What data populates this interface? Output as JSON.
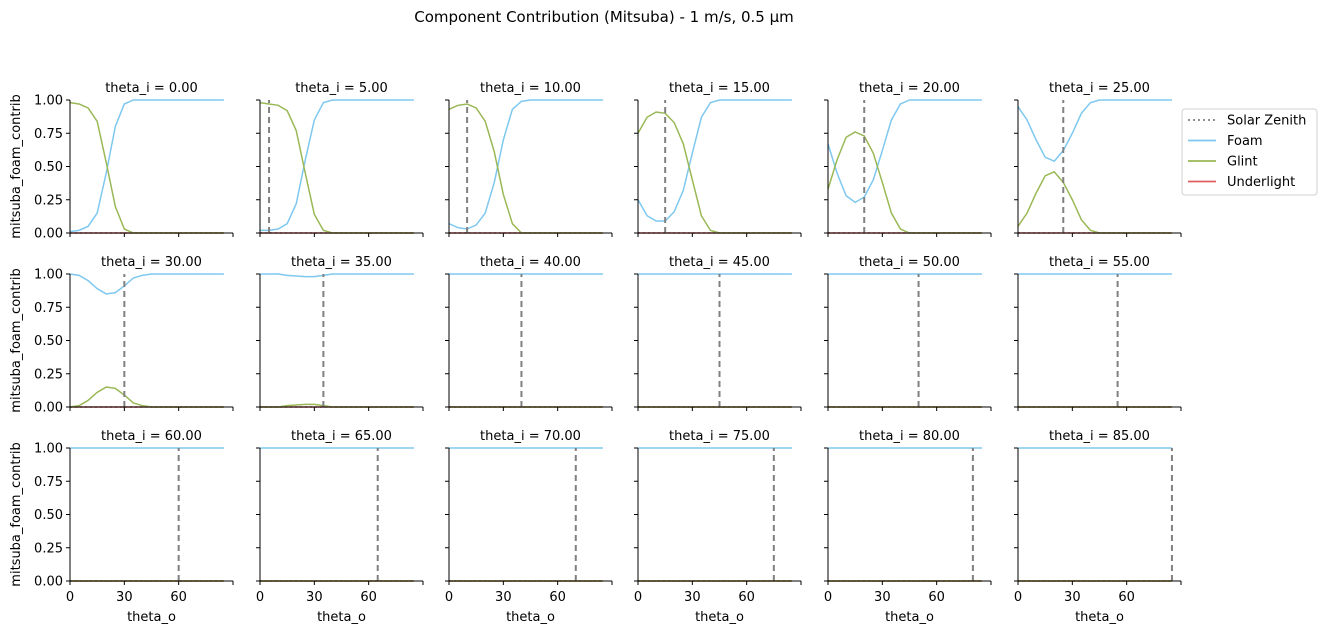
{
  "chart_data": {
    "type": "line",
    "title": "Component Contribution (Mitsuba) - 1 m/s, 0.5 µm",
    "xlabel": "theta_o",
    "ylabel": "mitsuba_foam_contrib",
    "xlim": [
      0,
      90
    ],
    "ylim": [
      0,
      1
    ],
    "x_ticks": [
      "0",
      "30",
      "60"
    ],
    "y_ticks": [
      "0.00",
      "0.25",
      "0.50",
      "0.75",
      "1.00"
    ],
    "grid": false,
    "legend_position": "right",
    "legend": [
      "Solar Zenith",
      "Foam",
      "Glint",
      "Underlight"
    ],
    "colors": {
      "Solar Zenith": "#808080",
      "Foam": "#7ec8f0",
      "Glint": "#9ab855",
      "Underlight": "#e06060"
    },
    "theta_o": [
      0,
      5,
      10,
      15,
      20,
      25,
      30,
      35,
      40,
      45,
      50,
      55,
      60,
      65,
      70,
      75,
      80,
      85
    ],
    "panels": [
      {
        "title": "theta_i = 0.00",
        "solar_zenith": 0,
        "foam": [
          0.01,
          0.02,
          0.05,
          0.15,
          0.45,
          0.8,
          0.97,
          1,
          1,
          1,
          1,
          1,
          1,
          1,
          1,
          1,
          1,
          1
        ],
        "glint": [
          0.98,
          0.97,
          0.94,
          0.84,
          0.53,
          0.2,
          0.03,
          0,
          0,
          0,
          0,
          0,
          0,
          0,
          0,
          0,
          0,
          0
        ],
        "underlight": [
          0,
          0,
          0,
          0,
          0,
          0,
          0,
          0,
          0,
          0,
          0,
          0,
          0,
          0,
          0,
          0,
          0,
          0
        ]
      },
      {
        "title": "theta_i = 5.00",
        "solar_zenith": 5,
        "foam": [
          0.02,
          0.02,
          0.03,
          0.07,
          0.22,
          0.55,
          0.85,
          0.98,
          1,
          1,
          1,
          1,
          1,
          1,
          1,
          1,
          1,
          1
        ],
        "glint": [
          0.98,
          0.97,
          0.96,
          0.92,
          0.77,
          0.45,
          0.14,
          0.02,
          0,
          0,
          0,
          0,
          0,
          0,
          0,
          0,
          0,
          0
        ],
        "underlight": [
          0,
          0,
          0,
          0,
          0,
          0,
          0,
          0,
          0,
          0,
          0,
          0,
          0,
          0,
          0,
          0,
          0,
          0
        ]
      },
      {
        "title": "theta_i = 10.00",
        "solar_zenith": 10,
        "foam": [
          0.07,
          0.04,
          0.03,
          0.06,
          0.15,
          0.38,
          0.7,
          0.93,
          0.99,
          1,
          1,
          1,
          1,
          1,
          1,
          1,
          1,
          1
        ],
        "glint": [
          0.93,
          0.96,
          0.97,
          0.94,
          0.84,
          0.61,
          0.29,
          0.07,
          0,
          0,
          0,
          0,
          0,
          0,
          0,
          0,
          0,
          0
        ],
        "underlight": [
          0,
          0,
          0,
          0,
          0,
          0,
          0,
          0,
          0,
          0,
          0,
          0,
          0,
          0,
          0,
          0,
          0,
          0
        ]
      },
      {
        "title": "theta_i = 15.00",
        "solar_zenith": 15,
        "foam": [
          0.25,
          0.13,
          0.09,
          0.09,
          0.16,
          0.32,
          0.6,
          0.87,
          0.98,
          1,
          1,
          1,
          1,
          1,
          1,
          1,
          1,
          1
        ],
        "glint": [
          0.75,
          0.87,
          0.91,
          0.9,
          0.83,
          0.67,
          0.4,
          0.13,
          0.02,
          0,
          0,
          0,
          0,
          0,
          0,
          0,
          0,
          0
        ],
        "underlight": [
          0,
          0,
          0,
          0,
          0,
          0,
          0,
          0,
          0,
          0,
          0,
          0,
          0,
          0,
          0,
          0,
          0,
          0
        ]
      },
      {
        "title": "theta_i = 20.00",
        "solar_zenith": 20,
        "foam": [
          0.67,
          0.45,
          0.28,
          0.23,
          0.27,
          0.4,
          0.62,
          0.85,
          0.97,
          1,
          1,
          1,
          1,
          1,
          1,
          1,
          1,
          1
        ],
        "glint": [
          0.33,
          0.55,
          0.72,
          0.76,
          0.73,
          0.6,
          0.38,
          0.15,
          0.03,
          0,
          0,
          0,
          0,
          0,
          0,
          0,
          0,
          0
        ],
        "underlight": [
          0,
          0,
          0,
          0,
          0,
          0,
          0,
          0,
          0,
          0,
          0,
          0,
          0,
          0,
          0,
          0,
          0,
          0
        ]
      },
      {
        "title": "theta_i = 25.00",
        "solar_zenith": 25,
        "foam": [
          0.95,
          0.85,
          0.7,
          0.57,
          0.54,
          0.62,
          0.75,
          0.9,
          0.98,
          1,
          1,
          1,
          1,
          1,
          1,
          1,
          1,
          1
        ],
        "glint": [
          0.05,
          0.15,
          0.3,
          0.43,
          0.46,
          0.38,
          0.25,
          0.1,
          0.02,
          0,
          0,
          0,
          0,
          0,
          0,
          0,
          0,
          0
        ],
        "underlight": [
          0,
          0,
          0,
          0,
          0,
          0,
          0,
          0,
          0,
          0,
          0,
          0,
          0,
          0,
          0,
          0,
          0,
          0
        ]
      },
      {
        "title": "theta_i = 30.00",
        "solar_zenith": 30,
        "foam": [
          1.0,
          0.99,
          0.95,
          0.89,
          0.85,
          0.86,
          0.91,
          0.97,
          0.99,
          1,
          1,
          1,
          1,
          1,
          1,
          1,
          1,
          1
        ],
        "glint": [
          0.0,
          0.01,
          0.05,
          0.11,
          0.15,
          0.14,
          0.09,
          0.03,
          0.01,
          0,
          0,
          0,
          0,
          0,
          0,
          0,
          0,
          0
        ],
        "underlight": [
          0,
          0,
          0,
          0,
          0,
          0,
          0,
          0,
          0,
          0,
          0,
          0,
          0,
          0,
          0,
          0,
          0,
          0
        ]
      },
      {
        "title": "theta_i = 35.00",
        "solar_zenith": 35,
        "foam": [
          1,
          1,
          1,
          0.99,
          0.985,
          0.98,
          0.98,
          0.99,
          1,
          1,
          1,
          1,
          1,
          1,
          1,
          1,
          1,
          1
        ],
        "glint": [
          0,
          0,
          0,
          0.01,
          0.015,
          0.02,
          0.02,
          0.01,
          0,
          0,
          0,
          0,
          0,
          0,
          0,
          0,
          0,
          0
        ],
        "underlight": [
          0,
          0,
          0,
          0,
          0,
          0,
          0,
          0,
          0,
          0,
          0,
          0,
          0,
          0,
          0,
          0,
          0,
          0
        ]
      },
      {
        "title": "theta_i = 40.00",
        "solar_zenith": 40,
        "foam": [
          1,
          1,
          1,
          1,
          1,
          1,
          1,
          1,
          1,
          1,
          1,
          1,
          1,
          1,
          1,
          1,
          1,
          1
        ],
        "glint": [
          0,
          0,
          0,
          0,
          0,
          0,
          0,
          0,
          0,
          0,
          0,
          0,
          0,
          0,
          0,
          0,
          0,
          0
        ],
        "underlight": [
          0,
          0,
          0,
          0,
          0,
          0,
          0,
          0,
          0,
          0,
          0,
          0,
          0,
          0,
          0,
          0,
          0,
          0
        ]
      },
      {
        "title": "theta_i = 45.00",
        "solar_zenith": 45,
        "foam": [
          1,
          1,
          1,
          1,
          1,
          1,
          1,
          1,
          1,
          1,
          1,
          1,
          1,
          1,
          1,
          1,
          1,
          1
        ],
        "glint": [
          0,
          0,
          0,
          0,
          0,
          0,
          0,
          0,
          0,
          0,
          0,
          0,
          0,
          0,
          0,
          0,
          0,
          0
        ],
        "underlight": [
          0,
          0,
          0,
          0,
          0,
          0,
          0,
          0,
          0,
          0,
          0,
          0,
          0,
          0,
          0,
          0,
          0,
          0
        ]
      },
      {
        "title": "theta_i = 50.00",
        "solar_zenith": 50,
        "foam": [
          1,
          1,
          1,
          1,
          1,
          1,
          1,
          1,
          1,
          1,
          1,
          1,
          1,
          1,
          1,
          1,
          1,
          1
        ],
        "glint": [
          0,
          0,
          0,
          0,
          0,
          0,
          0,
          0,
          0,
          0,
          0,
          0,
          0,
          0,
          0,
          0,
          0,
          0
        ],
        "underlight": [
          0,
          0,
          0,
          0,
          0,
          0,
          0,
          0,
          0,
          0,
          0,
          0,
          0,
          0,
          0,
          0,
          0,
          0
        ]
      },
      {
        "title": "theta_i = 55.00",
        "solar_zenith": 55,
        "foam": [
          1,
          1,
          1,
          1,
          1,
          1,
          1,
          1,
          1,
          1,
          1,
          1,
          1,
          1,
          1,
          1,
          1,
          1
        ],
        "glint": [
          0,
          0,
          0,
          0,
          0,
          0,
          0,
          0,
          0,
          0,
          0,
          0,
          0,
          0,
          0,
          0,
          0,
          0
        ],
        "underlight": [
          0,
          0,
          0,
          0,
          0,
          0,
          0,
          0,
          0,
          0,
          0,
          0,
          0,
          0,
          0,
          0,
          0,
          0
        ]
      },
      {
        "title": "theta_i = 60.00",
        "solar_zenith": 60,
        "foam": [
          1,
          1,
          1,
          1,
          1,
          1,
          1,
          1,
          1,
          1,
          1,
          1,
          1,
          1,
          1,
          1,
          1,
          1
        ],
        "glint": [
          0,
          0,
          0,
          0,
          0,
          0,
          0,
          0,
          0,
          0,
          0,
          0,
          0,
          0,
          0,
          0,
          0,
          0
        ],
        "underlight": [
          0,
          0,
          0,
          0,
          0,
          0,
          0,
          0,
          0,
          0,
          0,
          0,
          0,
          0,
          0,
          0,
          0,
          0
        ]
      },
      {
        "title": "theta_i = 65.00",
        "solar_zenith": 65,
        "foam": [
          1,
          1,
          1,
          1,
          1,
          1,
          1,
          1,
          1,
          1,
          1,
          1,
          1,
          1,
          1,
          1,
          1,
          1
        ],
        "glint": [
          0,
          0,
          0,
          0,
          0,
          0,
          0,
          0,
          0,
          0,
          0,
          0,
          0,
          0,
          0,
          0,
          0,
          0
        ],
        "underlight": [
          0,
          0,
          0,
          0,
          0,
          0,
          0,
          0,
          0,
          0,
          0,
          0,
          0,
          0,
          0,
          0,
          0,
          0
        ]
      },
      {
        "title": "theta_i = 70.00",
        "solar_zenith": 70,
        "foam": [
          1,
          1,
          1,
          1,
          1,
          1,
          1,
          1,
          1,
          1,
          1,
          1,
          1,
          1,
          1,
          1,
          1,
          1
        ],
        "glint": [
          0,
          0,
          0,
          0,
          0,
          0,
          0,
          0,
          0,
          0,
          0,
          0,
          0,
          0,
          0,
          0,
          0,
          0
        ],
        "underlight": [
          0,
          0,
          0,
          0,
          0,
          0,
          0,
          0,
          0,
          0,
          0,
          0,
          0,
          0,
          0,
          0,
          0,
          0
        ]
      },
      {
        "title": "theta_i = 75.00",
        "solar_zenith": 75,
        "foam": [
          1,
          1,
          1,
          1,
          1,
          1,
          1,
          1,
          1,
          1,
          1,
          1,
          1,
          1,
          1,
          1,
          1,
          1
        ],
        "glint": [
          0,
          0,
          0,
          0,
          0,
          0,
          0,
          0,
          0,
          0,
          0,
          0,
          0,
          0,
          0,
          0,
          0,
          0
        ],
        "underlight": [
          0,
          0,
          0,
          0,
          0,
          0,
          0,
          0,
          0,
          0,
          0,
          0,
          0,
          0,
          0,
          0,
          0,
          0
        ]
      },
      {
        "title": "theta_i = 80.00",
        "solar_zenith": 80,
        "foam": [
          1,
          1,
          1,
          1,
          1,
          1,
          1,
          1,
          1,
          1,
          1,
          1,
          1,
          1,
          1,
          1,
          1,
          1
        ],
        "glint": [
          0,
          0,
          0,
          0,
          0,
          0,
          0,
          0,
          0,
          0,
          0,
          0,
          0,
          0,
          0,
          0,
          0,
          0
        ],
        "underlight": [
          0,
          0,
          0,
          0,
          0,
          0,
          0,
          0,
          0,
          0,
          0,
          0,
          0,
          0,
          0,
          0,
          0,
          0
        ]
      },
      {
        "title": "theta_i = 85.00",
        "solar_zenith": 85,
        "foam": [
          1,
          1,
          1,
          1,
          1,
          1,
          1,
          1,
          1,
          1,
          1,
          1,
          1,
          1,
          1,
          1,
          1,
          1
        ],
        "glint": [
          0,
          0,
          0,
          0,
          0,
          0,
          0,
          0,
          0,
          0,
          0,
          0,
          0,
          0,
          0,
          0,
          0,
          0
        ],
        "underlight": [
          0,
          0,
          0,
          0,
          0,
          0,
          0,
          0,
          0,
          0,
          0,
          0,
          0,
          0,
          0,
          0,
          0,
          0
        ]
      }
    ]
  }
}
